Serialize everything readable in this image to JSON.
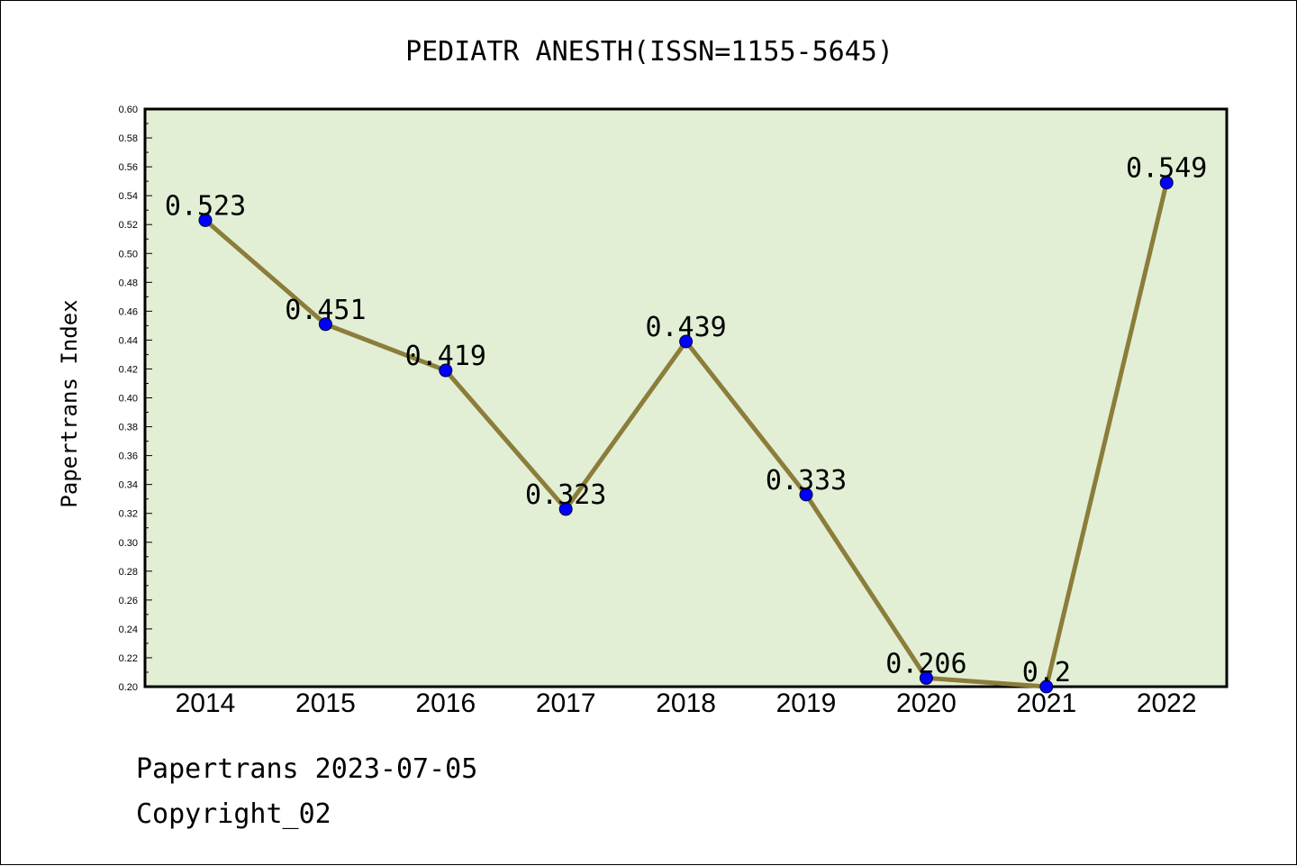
{
  "chart_data": {
    "type": "line",
    "title": "PEDIATR ANESTH(ISSN=1155-5645)",
    "ylabel": "Papertrans Index",
    "xlabel": "",
    "categories": [
      "2014",
      "2015",
      "2016",
      "2017",
      "2018",
      "2019",
      "2020",
      "2021",
      "2022"
    ],
    "values": [
      0.523,
      0.451,
      0.419,
      0.323,
      0.439,
      0.333,
      0.206,
      0.2,
      0.549
    ],
    "data_labels": [
      "0.523",
      "0.451",
      "0.419",
      "0.323",
      "0.439",
      "0.333",
      "0.206",
      "0.2",
      "0.549"
    ],
    "ylim": [
      0.2,
      0.6
    ],
    "yticks": [
      "0.20",
      "0.22",
      "0.24",
      "0.26",
      "0.28",
      "0.30",
      "0.32",
      "0.34",
      "0.36",
      "0.38",
      "0.40",
      "0.42",
      "0.44",
      "0.46",
      "0.48",
      "0.50",
      "0.52",
      "0.54",
      "0.56",
      "0.58",
      "0.60"
    ],
    "grid": false,
    "colors": {
      "plot_background": "#e2efd5",
      "line": "#8b7d3a",
      "marker": "#0000ff"
    }
  },
  "footer": {
    "line1": "Papertrans 2023-07-05",
    "line2": "Copyright_02"
  }
}
